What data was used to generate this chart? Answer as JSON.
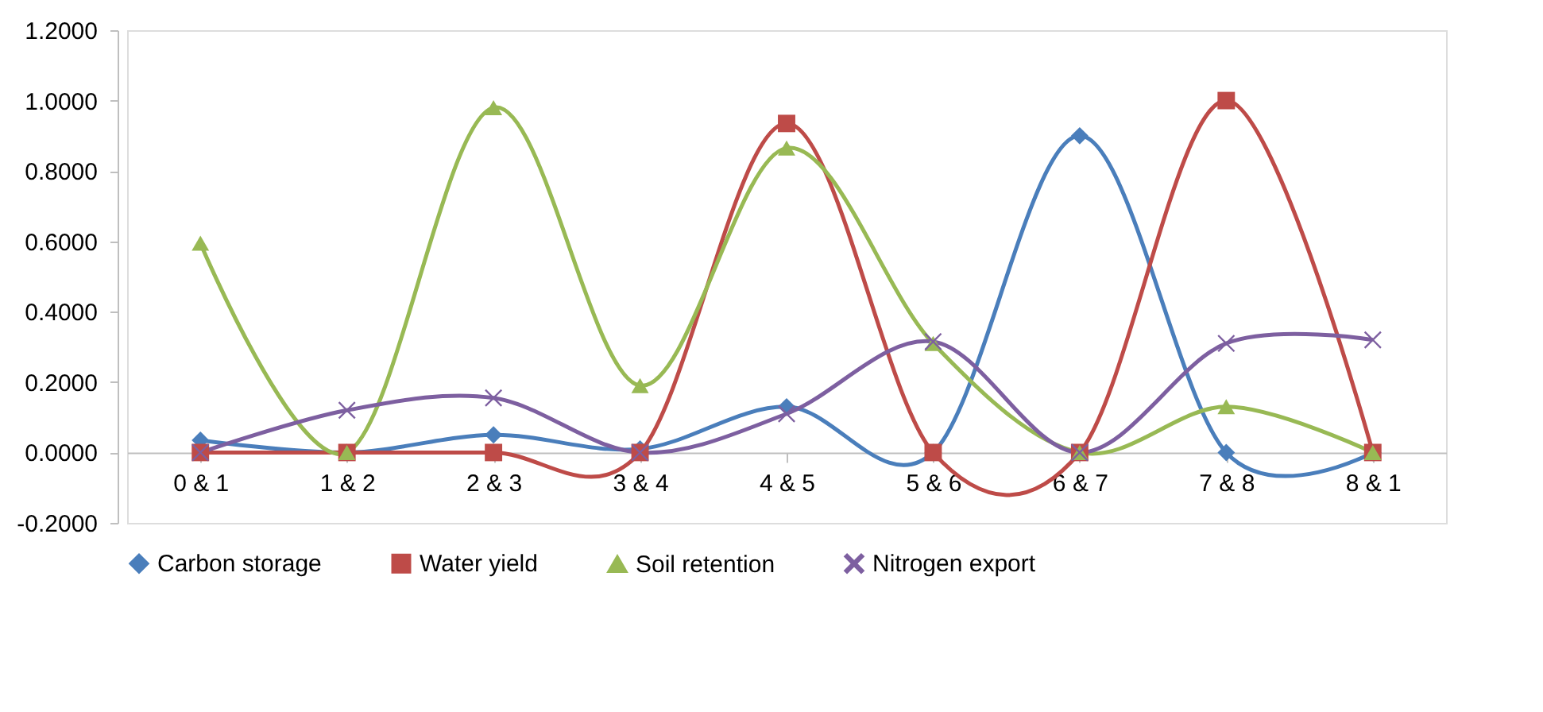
{
  "chart_data": {
    "type": "line",
    "categories": [
      "0 & 1",
      "1 & 2",
      "2 & 3",
      "3 & 4",
      "4 & 5",
      "5 & 6",
      "6 & 7",
      "7 & 8",
      "8 & 1"
    ],
    "series": [
      {
        "name": "Carbon storage",
        "color": "#4a7ebb",
        "marker": "diamond",
        "values": [
          0.035,
          0,
          0.05,
          0.01,
          0.13,
          0,
          0.9,
          0,
          0
        ]
      },
      {
        "name": "Water yield",
        "color": "#be4b48",
        "marker": "square",
        "values": [
          0,
          0,
          0,
          0,
          0.935,
          0,
          0,
          1.0,
          0
        ]
      },
      {
        "name": "Soil retention",
        "color": "#98b954",
        "marker": "triangle",
        "values": [
          0.595,
          0,
          0.98,
          0.19,
          0.865,
          0.31,
          0,
          0.13,
          0
        ]
      },
      {
        "name": "Nitrogen export",
        "color": "#7d5fa0",
        "marker": "cross",
        "values": [
          0,
          0.12,
          0.155,
          0,
          0.11,
          0.315,
          0,
          0.31,
          0.32
        ]
      }
    ],
    "ylim": [
      -0.2,
      1.2
    ],
    "yticks": [
      {
        "value": -0.2,
        "label": "-0.2000"
      },
      {
        "value": 0,
        "label": "0.0000"
      },
      {
        "value": 0.2,
        "label": "0.2000"
      },
      {
        "value": 0.4,
        "label": "0.4000"
      },
      {
        "value": 0.6,
        "label": "0.6000"
      },
      {
        "value": 0.8,
        "label": "0.8000"
      },
      {
        "value": 1.0,
        "label": "1.0000"
      },
      {
        "value": 1.2,
        "label": "1.2000"
      }
    ],
    "grid": false,
    "legend": "bottom",
    "line_style": "solid"
  }
}
